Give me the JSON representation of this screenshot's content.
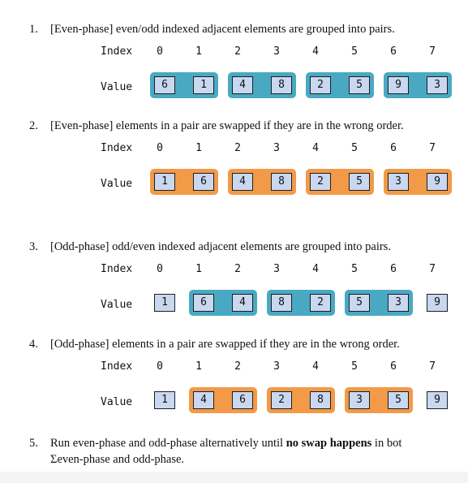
{
  "index_label": "Index",
  "value_label": "Value",
  "indices": [
    "0",
    "1",
    "2",
    "3",
    "4",
    "5",
    "6",
    "7"
  ],
  "colors": {
    "even_pair": "#4aa9c2",
    "swap_pair": "#f29a48",
    "cell_fill": "#c9d8f0"
  },
  "steps": [
    {
      "num": "1.",
      "text": "[Even-phase] even/odd indexed adjacent elements are grouped into pairs.",
      "values": [
        "6",
        "1",
        "4",
        "8",
        "2",
        "5",
        "9",
        "3"
      ],
      "pairs": [
        [
          0,
          1
        ],
        [
          2,
          3
        ],
        [
          4,
          5
        ],
        [
          6,
          7
        ]
      ],
      "pair_color": "blue"
    },
    {
      "num": "2.",
      "text": "[Even-phase] elements in a pair are swapped if they are in the wrong order.",
      "values": [
        "1",
        "6",
        "4",
        "8",
        "2",
        "5",
        "3",
        "9"
      ],
      "pairs": [
        [
          0,
          1
        ],
        [
          2,
          3
        ],
        [
          4,
          5
        ],
        [
          6,
          7
        ]
      ],
      "pair_color": "orange"
    },
    {
      "num": "3.",
      "text": "[Odd-phase] odd/even indexed adjacent elements are grouped into pairs.",
      "values": [
        "1",
        "6",
        "4",
        "8",
        "2",
        "5",
        "3",
        "9"
      ],
      "pairs": [
        [
          1,
          2
        ],
        [
          3,
          4
        ],
        [
          5,
          6
        ]
      ],
      "pair_color": "blue"
    },
    {
      "num": "4.",
      "text": "[Odd-phase] elements in a pair are swapped if they are in the wrong order.",
      "values": [
        "1",
        "4",
        "6",
        "2",
        "8",
        "3",
        "5",
        "9"
      ],
      "pairs": [
        [
          1,
          2
        ],
        [
          3,
          4
        ],
        [
          5,
          6
        ]
      ],
      "pair_color": "orange"
    }
  ],
  "final": {
    "num": "5.",
    "text_before": "Run even-phase and odd-phase alternatively until ",
    "bold": "no swap happens",
    "text_after": " in bot",
    "line2": "Σeven-phase and odd-phase."
  }
}
